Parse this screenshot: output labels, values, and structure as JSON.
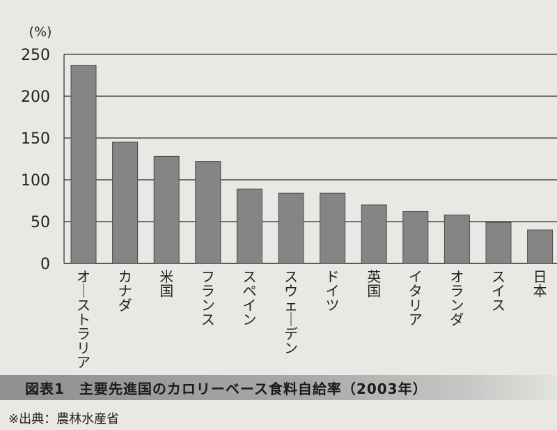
{
  "chart_data": {
    "type": "bar",
    "unit_label": "(%)",
    "categories": [
      "オーストラリア",
      "カナダ",
      "米国",
      "フランス",
      "スペイン",
      "スウェーデン",
      "ドイツ",
      "英国",
      "イタリア",
      "オランダ",
      "スイス",
      "日本"
    ],
    "values": [
      237,
      145,
      128,
      122,
      89,
      84,
      84,
      70,
      62,
      58,
      49,
      40
    ],
    "yticks": [
      0,
      50,
      100,
      150,
      200,
      250
    ],
    "ylim": [
      0,
      250
    ],
    "grid": true,
    "colors": {
      "bar": "#858585",
      "bar_stroke": "#4a4a4a",
      "grid": "#2a2a2a"
    }
  },
  "caption": "図表1　主要先進国のカロリーベース食料自給率（2003年）",
  "source": "※出典：農林水産省"
}
